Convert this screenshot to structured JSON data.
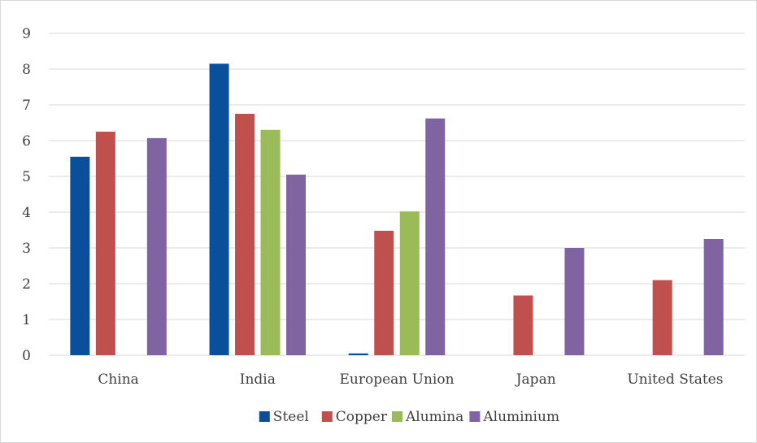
{
  "chart_data": {
    "type": "bar",
    "title": "",
    "xlabel": "",
    "ylabel": "",
    "ylim": [
      0,
      9
    ],
    "y_ticks": [
      "0",
      "1",
      "2",
      "3",
      "4",
      "5",
      "6",
      "7",
      "8",
      "9"
    ],
    "grid": true,
    "legend_position": "bottom",
    "categories": [
      "China",
      "India",
      "European Union",
      "Japan",
      "United States"
    ],
    "series": [
      {
        "name": "Steel",
        "color": "#0a4f9c",
        "values": [
          5.55,
          8.15,
          0.05,
          0,
          0
        ]
      },
      {
        "name": "Copper",
        "color": "#c0504d",
        "values": [
          6.25,
          6.75,
          3.48,
          1.67,
          2.1
        ]
      },
      {
        "name": "Alumina",
        "color": "#9bbb59",
        "values": [
          0,
          6.3,
          4.02,
          0,
          0
        ]
      },
      {
        "name": "Aluminium",
        "color": "#8064a2",
        "values": [
          6.07,
          5.05,
          6.62,
          3.0,
          3.25
        ]
      }
    ]
  }
}
